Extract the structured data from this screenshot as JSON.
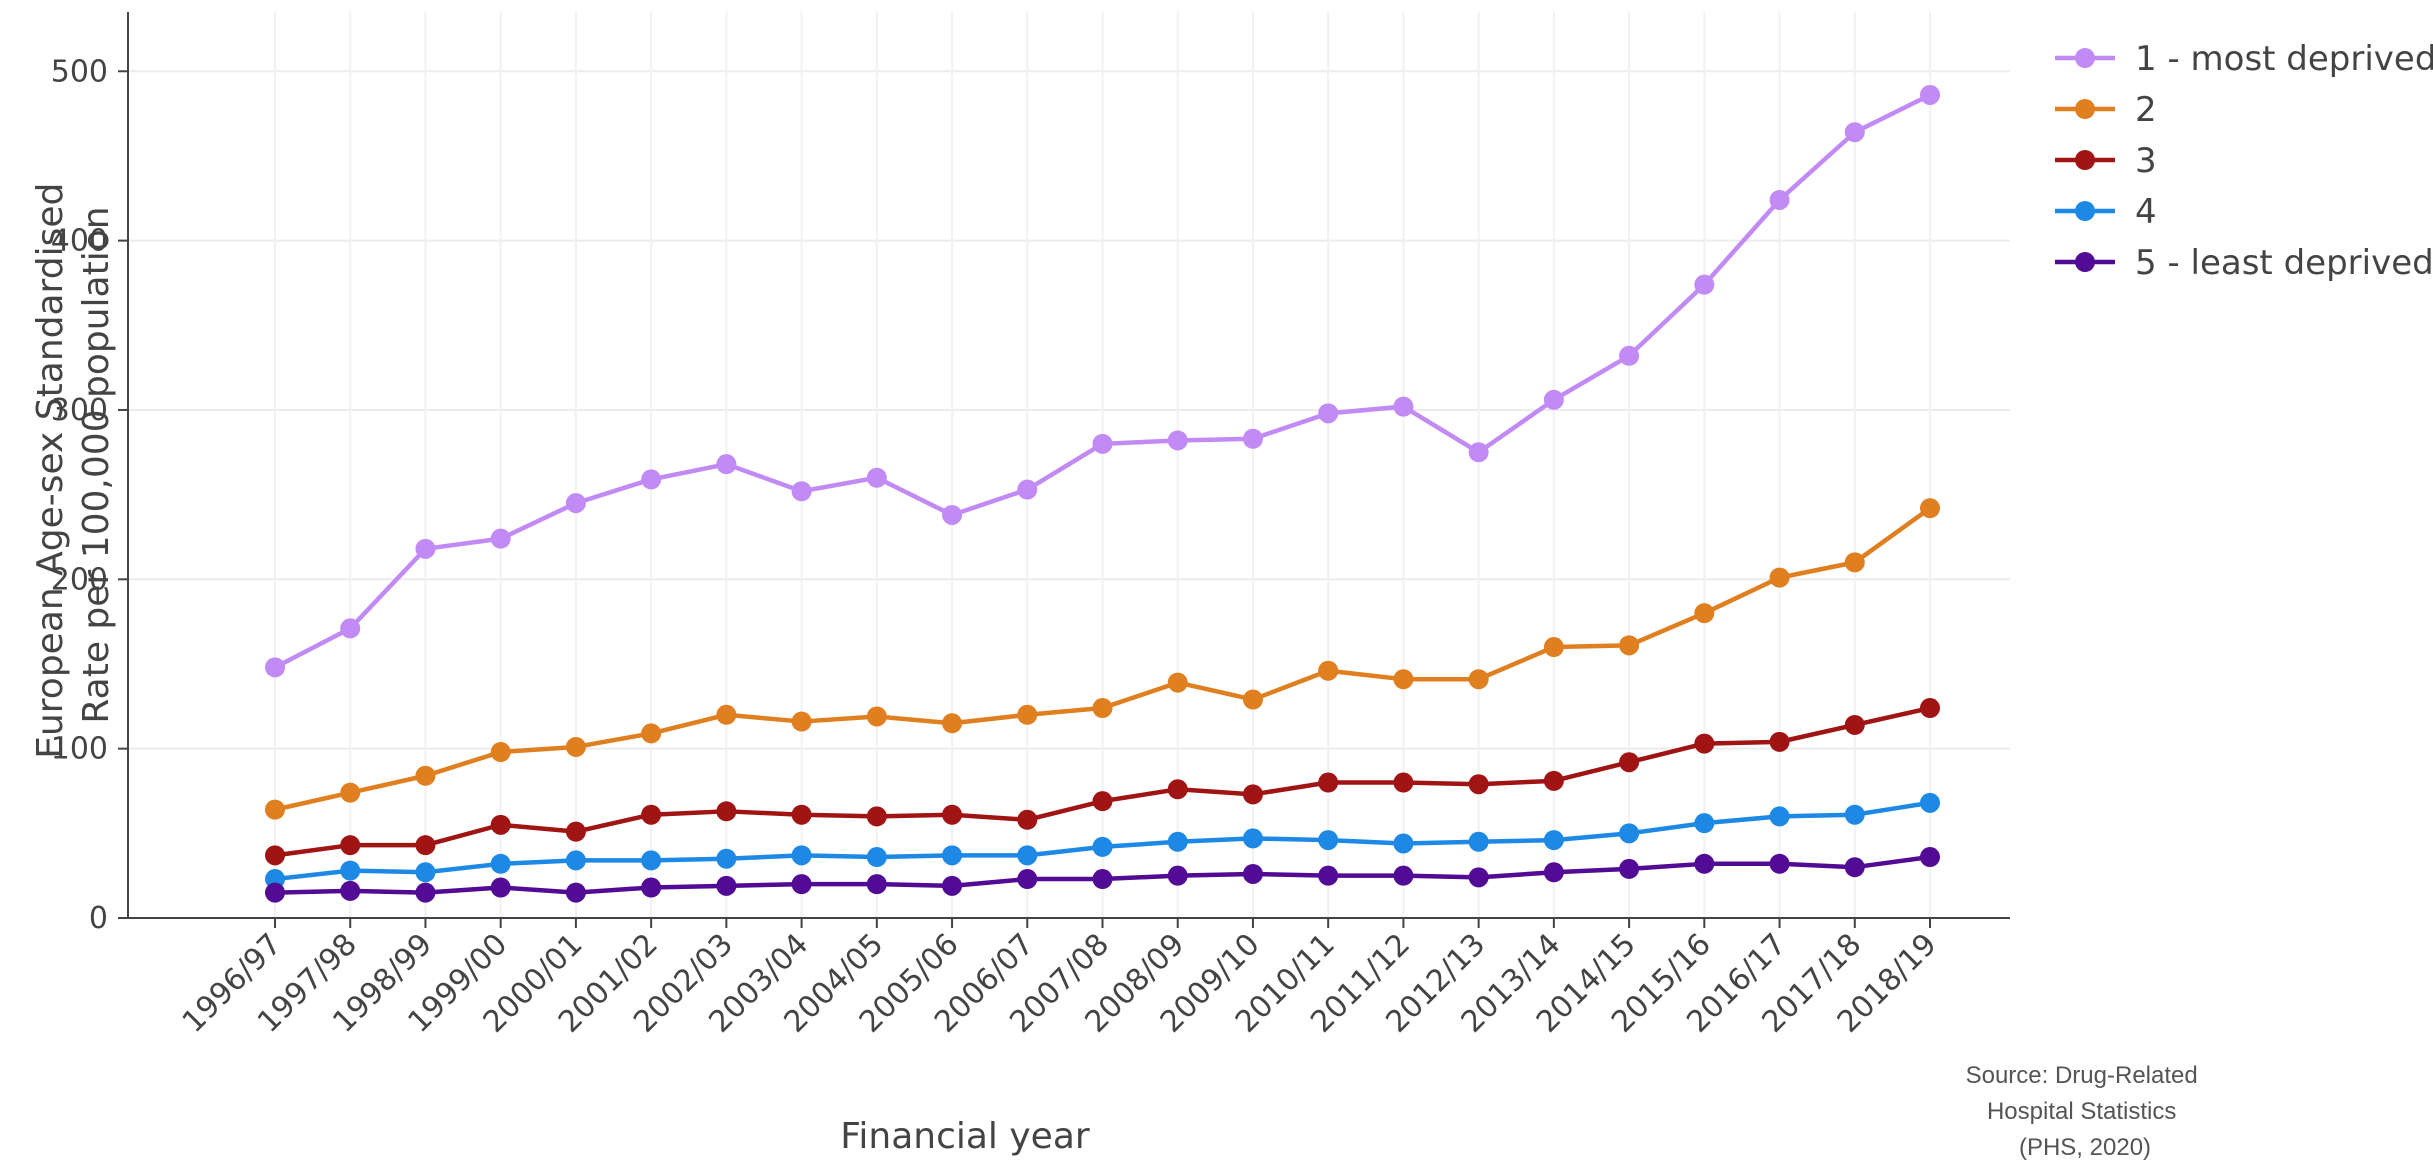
{
  "chart_data": {
    "type": "line",
    "title": "",
    "xlabel": "Financial year",
    "ylabel_lines": [
      "European Age-sex Standardised",
      "Rate per 100,000 population"
    ],
    "ylim": [
      0,
      535
    ],
    "yticks": [
      0,
      100,
      200,
      300,
      400,
      500
    ],
    "grid": true,
    "legend_position": "top-right",
    "categories": [
      "1996/97",
      "1997/98",
      "1998/99",
      "1999/00",
      "2000/01",
      "2001/02",
      "2002/03",
      "2003/04",
      "2004/05",
      "2005/06",
      "2006/07",
      "2007/08",
      "2008/09",
      "2009/10",
      "2010/11",
      "2011/12",
      "2012/13",
      "2013/14",
      "2014/15",
      "2015/16",
      "2016/17",
      "2017/18",
      "2018/19"
    ],
    "series": [
      {
        "name": "1 - most deprived",
        "color": "#c18af5",
        "values": [
          148,
          171,
          218,
          224,
          245,
          259,
          268,
          252,
          260,
          238,
          253,
          280,
          282,
          283,
          298,
          302,
          275,
          306,
          332,
          374,
          424,
          464,
          486
        ]
      },
      {
        "name": "2",
        "color": "#e07f1f",
        "values": [
          64,
          74,
          84,
          98,
          101,
          109,
          120,
          116,
          119,
          115,
          120,
          124,
          139,
          129,
          146,
          141,
          141,
          160,
          161,
          180,
          201,
          210,
          242
        ]
      },
      {
        "name": "3",
        "color": "#a01414",
        "values": [
          37,
          43,
          43,
          55,
          51,
          61,
          63,
          61,
          60,
          61,
          58,
          69,
          76,
          73,
          80,
          80,
          79,
          81,
          92,
          103,
          104,
          114,
          124
        ]
      },
      {
        "name": "4",
        "color": "#1e88e5",
        "values": [
          23,
          28,
          27,
          32,
          34,
          34,
          35,
          37,
          36,
          37,
          37,
          42,
          45,
          47,
          46,
          44,
          45,
          46,
          50,
          56,
          60,
          61,
          68
        ]
      },
      {
        "name": "5 - least deprived",
        "color": "#520b94",
        "values": [
          15,
          16,
          15,
          18,
          15,
          18,
          19,
          20,
          20,
          19,
          23,
          23,
          25,
          26,
          25,
          25,
          24,
          27,
          29,
          32,
          32,
          30,
          36
        ]
      }
    ],
    "annotation_lines": [
      "Source: Drug-Related",
      "Hospital Statistics",
      "(PHS, 2020)"
    ]
  }
}
